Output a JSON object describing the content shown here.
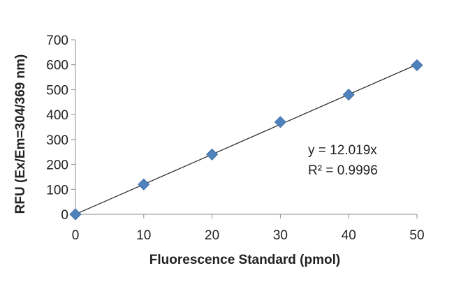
{
  "chart_data": {
    "type": "scatter",
    "title": "",
    "xlabel": "Fluorescence Standard (pmol)",
    "ylabel": "RFU (Ex/Em=304/369 nm)",
    "xlim": [
      0,
      50
    ],
    "ylim": [
      0,
      700
    ],
    "xticks": [
      "0",
      "10",
      "20",
      "30",
      "40",
      "50"
    ],
    "yticks": [
      "0",
      "100",
      "200",
      "300",
      "400",
      "500",
      "600",
      "700"
    ],
    "grid": false,
    "legend": "none",
    "series": [
      {
        "x": [
          0,
          10,
          20,
          30,
          40,
          50
        ],
        "y": [
          0,
          120,
          240,
          370,
          480,
          598
        ],
        "marker": "diamond",
        "color": "#4f81bd"
      }
    ],
    "trendline": {
      "type": "linear",
      "slope": 12.019,
      "intercept": 0,
      "color": "#333333",
      "equation": "y = 12.019x",
      "r_squared": "R² = 0.9996"
    }
  }
}
